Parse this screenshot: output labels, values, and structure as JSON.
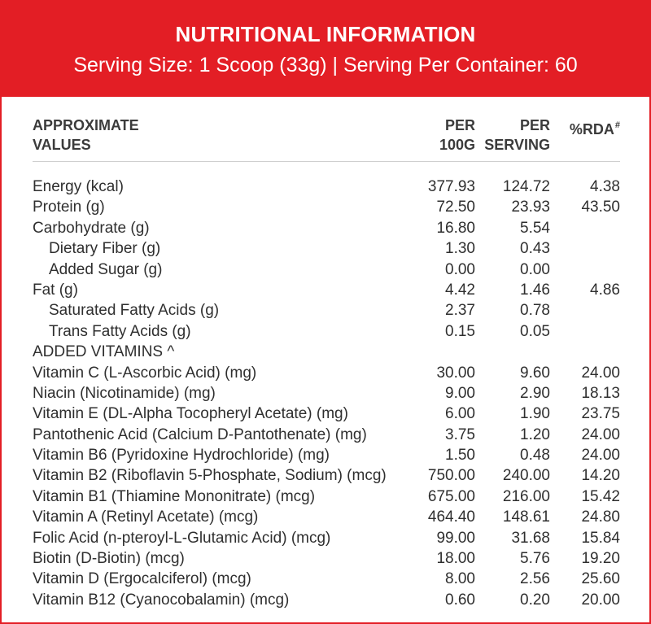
{
  "header": {
    "title": "NUTRITIONAL INFORMATION",
    "serving": "Serving Size: 1 Scoop (33g)  |  Serving Per Container: 60"
  },
  "columns": {
    "label_line1": "APPROXIMATE",
    "label_line2": "VALUES",
    "per100_line1": "PER",
    "per100_line2": "100G",
    "perserv_line1": "PER",
    "perserv_line2": "SERVING",
    "rda": "%RDA",
    "rda_mark": "#"
  },
  "colors": {
    "accent": "#e31e25",
    "text": "#2f2f2f"
  },
  "rows": [
    {
      "label": "Energy (kcal)",
      "per100": "377.93",
      "perserv": "124.72",
      "rda": "4.38"
    },
    {
      "label": "Protein (g)",
      "per100": "72.50",
      "perserv": "23.93",
      "rda": "43.50"
    },
    {
      "label": "Carbohydrate (g)",
      "per100": "16.80",
      "perserv": "5.54",
      "rda": ""
    },
    {
      "label": "Dietary Fiber (g)",
      "per100": "1.30",
      "perserv": "0.43",
      "rda": ""
    },
    {
      "label": "Added Sugar (g)",
      "per100": "0.00",
      "perserv": "0.00",
      "rda": ""
    },
    {
      "label": "Fat (g)",
      "per100": "4.42",
      "perserv": "1.46",
      "rda": "4.86"
    },
    {
      "label": "Saturated Fatty Acids (g)",
      "per100": "2.37",
      "perserv": "0.78",
      "rda": ""
    },
    {
      "label": "Trans Fatty Acids (g)",
      "per100": "0.15",
      "perserv": "0.05",
      "rda": ""
    },
    {
      "label": "ADDED VITAMINS ^",
      "per100": "",
      "perserv": "",
      "rda": ""
    },
    {
      "label": "Vitamin C (L-Ascorbic Acid) (mg)",
      "per100": "30.00",
      "perserv": "9.60",
      "rda": "24.00"
    },
    {
      "label": "Niacin (Nicotinamide) (mg)",
      "per100": "9.00",
      "perserv": "2.90",
      "rda": "18.13"
    },
    {
      "label": "Vitamin E (DL-Alpha Tocopheryl Acetate) (mg)",
      "per100": "6.00",
      "perserv": "1.90",
      "rda": "23.75"
    },
    {
      "label": "Pantothenic Acid (Calcium D-Pantothenate) (mg)",
      "per100": "3.75",
      "perserv": "1.20",
      "rda": "24.00"
    },
    {
      "label": "Vitamin B6 (Pyridoxine Hydrochloride) (mg)",
      "per100": "1.50",
      "perserv": "0.48",
      "rda": "24.00"
    },
    {
      "label": "Vitamin B2 (Riboflavin 5-Phosphate, Sodium) (mcg)",
      "per100": "750.00",
      "perserv": "240.00",
      "rda": "14.20"
    },
    {
      "label": "Vitamin B1 (Thiamine Mononitrate) (mcg)",
      "per100": "675.00",
      "perserv": "216.00",
      "rda": "15.42"
    },
    {
      "label": "Vitamin A (Retinyl Acetate) (mcg)",
      "per100": "464.40",
      "perserv": "148.61",
      "rda": "24.80"
    },
    {
      "label": "Folic Acid (n-pteroyl-L-Glutamic Acid) (mcg)",
      "per100": "99.00",
      "perserv": "31.68",
      "rda": "15.84"
    },
    {
      "label": "Biotin (D-Biotin) (mcg)",
      "per100": "18.00",
      "perserv": "5.76",
      "rda": "19.20"
    },
    {
      "label": "Vitamin D (Ergocalciferol) (mcg)",
      "per100": "8.00",
      "perserv": "2.56",
      "rda": "25.60"
    },
    {
      "label": "Vitamin B12 (Cyanocobalamin) (mcg)",
      "per100": "0.60",
      "perserv": "0.20",
      "rda": "20.00"
    }
  ]
}
